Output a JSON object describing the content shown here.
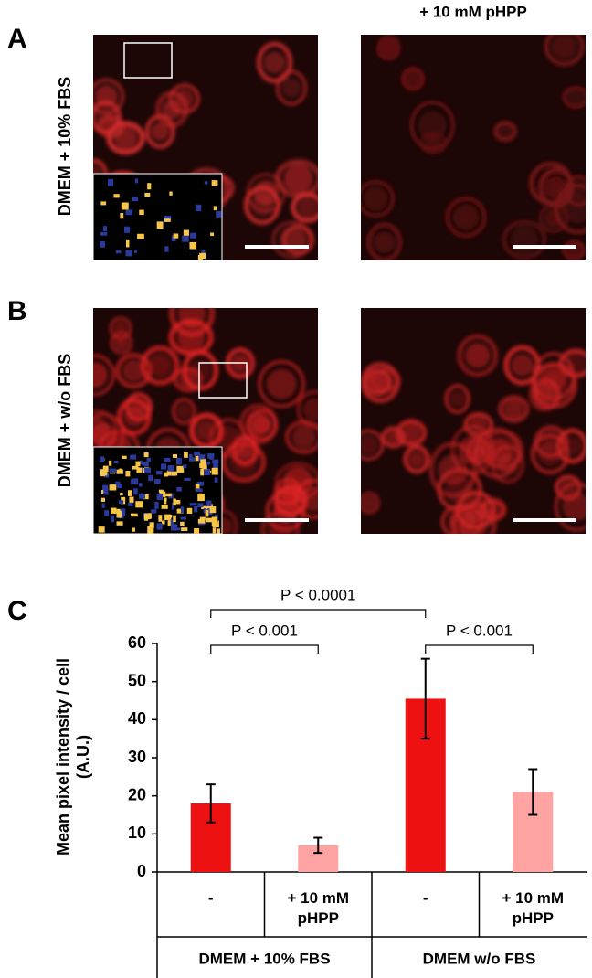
{
  "figure": {
    "panel_labels": [
      "A",
      "B",
      "C"
    ],
    "column_header": "+ 10 mM pHPP",
    "row_labels": [
      "DMEM + 10% FBS",
      "DMEM + w/o FBS"
    ]
  },
  "chart_data": {
    "type": "bar",
    "ylabel": "Mean pixel intensity / cell (A.U.)",
    "categories": [
      "-",
      "+ 10 mM pHPP",
      "-",
      "+ 10 mM pHPP"
    ],
    "groups": [
      "DMEM + 10% FBS",
      "DMEM w/o FBS"
    ],
    "values": [
      18,
      7,
      45.5,
      21
    ],
    "errors": [
      5,
      2,
      10.5,
      6
    ],
    "colors": [
      "#ee1111",
      "#ffa3a3",
      "#ee1111",
      "#ffa3a3"
    ],
    "annotations": [
      "P < 0.0001",
      "P < 0.001",
      "P < 0.001"
    ],
    "ylim": [
      0,
      60
    ],
    "yticks": [
      0,
      10,
      20,
      30,
      40,
      50,
      60
    ]
  }
}
